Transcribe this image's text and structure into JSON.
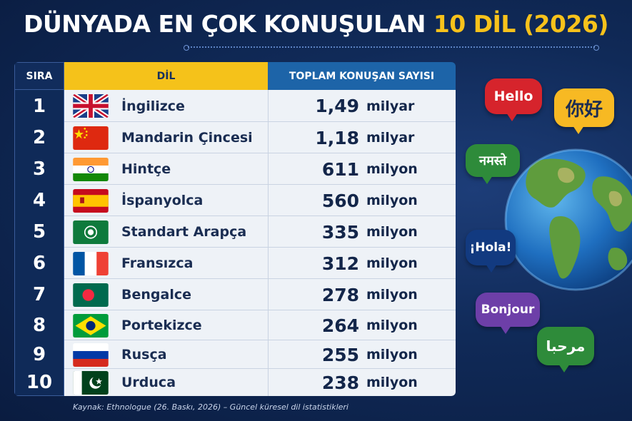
{
  "title": {
    "main": "DÜNYADA EN ÇOK KONUŞULAN",
    "highlight": "10 DİL (2026)"
  },
  "table": {
    "headers": {
      "rank": "SIRA",
      "language": "DİL",
      "total": "TOPLAM KONUŞAN SAYISI"
    },
    "rows": [
      {
        "rank": "1",
        "language": "İngilizce",
        "value": "1,49",
        "unit": "milyar",
        "flag": "united-kingdom-flag-icon"
      },
      {
        "rank": "2",
        "language": "Mandarin Çincesi",
        "value": "1,18",
        "unit": "milyar",
        "flag": "china-flag-icon"
      },
      {
        "rank": "3",
        "language": "Hintçe",
        "value": "611",
        "unit": "milyon",
        "flag": "india-flag-icon"
      },
      {
        "rank": "4",
        "language": "İspanyolca",
        "value": "560",
        "unit": "milyon",
        "flag": "spain-flag-icon"
      },
      {
        "rank": "5",
        "language": "Standart Arapça",
        "value": "335",
        "unit": "milyon",
        "flag": "arab-league-flag-icon"
      },
      {
        "rank": "6",
        "language": "Fransızca",
        "value": "312",
        "unit": "milyon",
        "flag": "france-flag-icon"
      },
      {
        "rank": "7",
        "language": "Bengalce",
        "value": "278",
        "unit": "milyon",
        "flag": "bangladesh-flag-icon"
      },
      {
        "rank": "8",
        "language": "Portekizce",
        "value": "264",
        "unit": "milyon",
        "flag": "brazil-flag-icon"
      },
      {
        "rank": "9",
        "language": "Rusça",
        "value": "255",
        "unit": "milyon",
        "flag": "russia-flag-icon"
      },
      {
        "rank": "10",
        "language": "Urduca",
        "value": "238",
        "unit": "milyon",
        "flag": "pakistan-flag-icon"
      }
    ]
  },
  "source": "Kaynak: Ethnologue (26. Baskı, 2026) – Güncel küresel dil istatistikleri",
  "bubbles": [
    "Hello",
    "你好",
    "नमस्ते",
    "¡Hola!",
    "Bonjour",
    "مرحبا"
  ],
  "colors": {
    "accent": "#f5c21a",
    "header_blue": "#1d64a8",
    "background": "#102a58"
  }
}
